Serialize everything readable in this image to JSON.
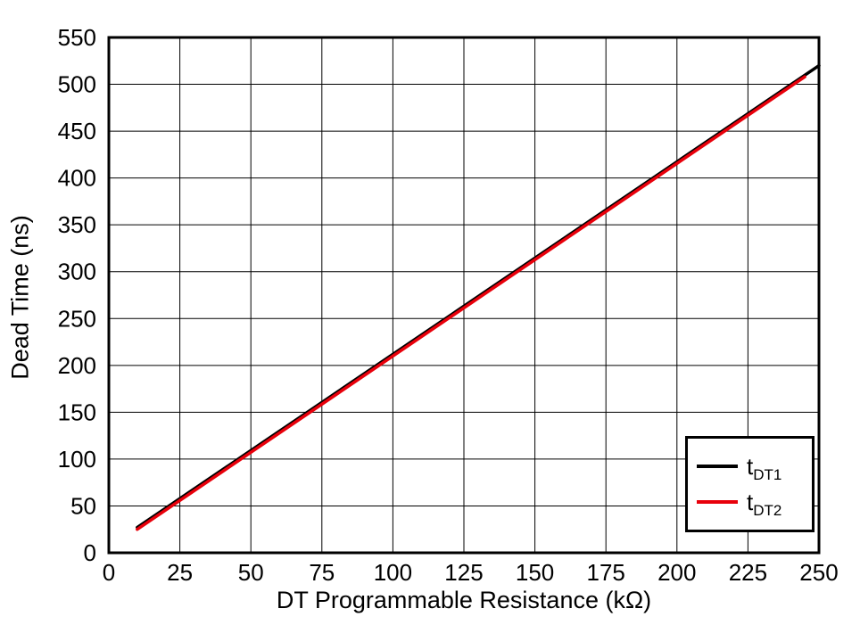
{
  "chart_data": {
    "type": "line",
    "title": "",
    "xlabel": "DT Programmable Resistance (kΩ)",
    "ylabel": "Dead Time (ns)",
    "xlim": [
      0,
      250
    ],
    "ylim": [
      0,
      550
    ],
    "x_ticks": [
      0,
      25,
      50,
      75,
      100,
      125,
      150,
      175,
      200,
      225,
      250
    ],
    "y_ticks": [
      0,
      50,
      100,
      150,
      200,
      250,
      300,
      350,
      400,
      450,
      500,
      550
    ],
    "grid": true,
    "grid_color": "#000000",
    "border_color": "#000000",
    "legend_position": "bottom-right",
    "series": [
      {
        "name": "tDT1",
        "label_main": "t",
        "label_sub": "DT1",
        "color": "#000000",
        "points": [
          [
            10,
            27
          ],
          [
            250,
            520
          ]
        ]
      },
      {
        "name": "tDT2",
        "label_main": "t",
        "label_sub": "DT2",
        "color": "#e8000b",
        "points": [
          [
            10,
            25
          ],
          [
            245,
            508
          ]
        ]
      }
    ]
  }
}
